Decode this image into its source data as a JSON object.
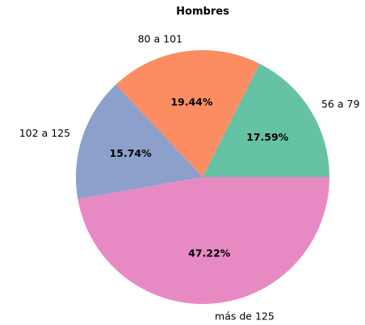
{
  "chart_data": {
    "type": "pie",
    "title": "Hombres",
    "start_angle_deg": 0,
    "direction": "counterclockwise",
    "slices": [
      {
        "label": "56 a 79",
        "value": 17.59,
        "pct_label": "17.59%",
        "color": "#66c2a5"
      },
      {
        "label": "80 a 101",
        "value": 19.44,
        "pct_label": "19.44%",
        "color": "#fc8d62"
      },
      {
        "label": "102 a 125",
        "value": 15.74,
        "pct_label": "15.74%",
        "color": "#8da0cb"
      },
      {
        "label": "más de 125",
        "value": 47.22,
        "pct_label": "47.22%",
        "color": "#e78ac3"
      }
    ]
  }
}
